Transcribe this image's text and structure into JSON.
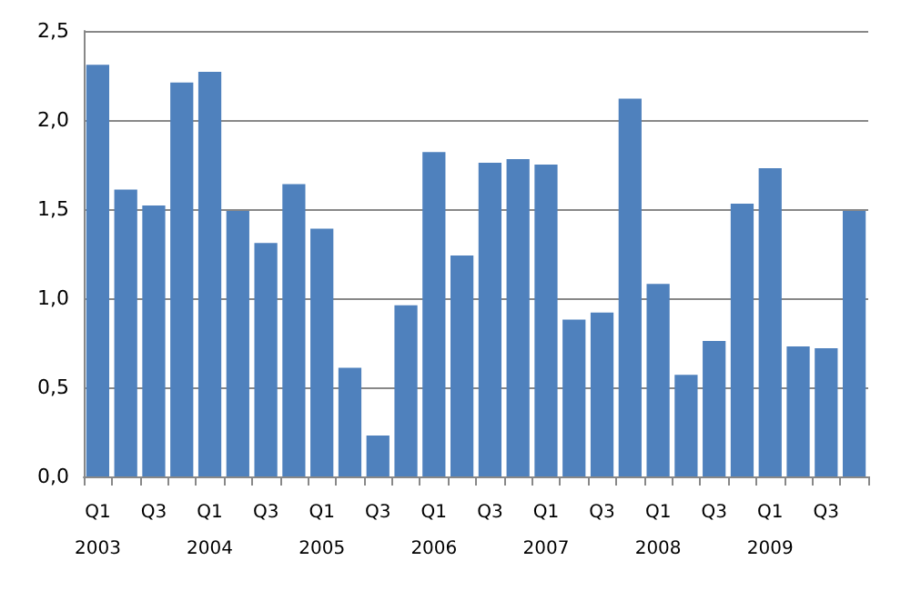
{
  "chart_data": {
    "type": "bar",
    "categories": [
      "Q1\n2003",
      null,
      "Q3",
      null,
      "Q1\n2004",
      null,
      "Q3",
      null,
      "Q1\n2005",
      null,
      "Q3",
      null,
      "Q1\n2006",
      null,
      "Q3",
      null,
      "Q1\n2007",
      null,
      "Q3",
      null,
      "Q1\n2008",
      null,
      "Q3",
      null,
      "Q1\n2009",
      null,
      "Q3",
      null
    ],
    "values": [
      2.31,
      1.61,
      1.52,
      2.21,
      2.27,
      1.49,
      1.31,
      1.64,
      1.39,
      0.61,
      0.23,
      0.96,
      1.82,
      1.24,
      1.76,
      1.78,
      1.75,
      0.88,
      0.92,
      2.12,
      1.08,
      0.57,
      0.76,
      1.53,
      1.73,
      0.73,
      0.72,
      1.49
    ],
    "color": "#4f81bd",
    "ylim": [
      0,
      2.5
    ],
    "yticks": [
      {
        "value": 0,
        "label": "0,0"
      },
      {
        "value": 0.5,
        "label": "0,5"
      },
      {
        "value": 1,
        "label": "1,0"
      },
      {
        "value": 1.5,
        "label": "1,5"
      },
      {
        "value": 2,
        "label": "2,0"
      },
      {
        "value": 2.5,
        "label": "2,5"
      }
    ],
    "grid": "y"
  }
}
